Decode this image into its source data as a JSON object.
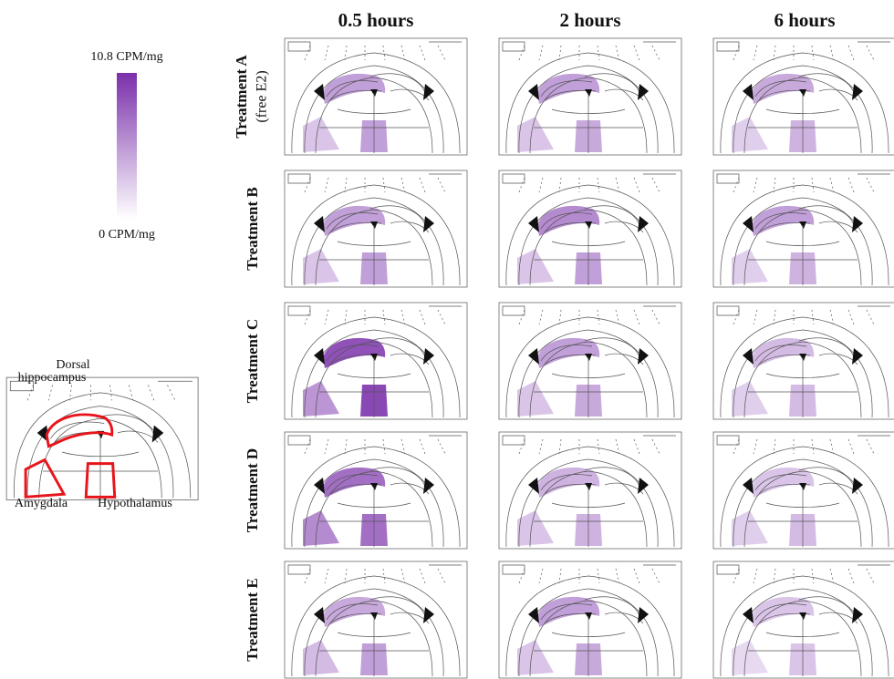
{
  "chart_data": {
    "type": "region-heatmap",
    "color": "#7a2fab",
    "colorbar": {
      "max": 10.8,
      "min": 0,
      "max_label": "10.8 CPM/mg",
      "min_label": "0 CPM/mg"
    },
    "key": {
      "labels": [
        "Dorsal hippocampus",
        "Amygdala",
        "Hypothalamus"
      ],
      "outline_color": "#e8141b"
    },
    "columns": [
      "0.5 hours",
      "2 hours",
      "6 hours"
    ],
    "rows": [
      {
        "label": "Treatment A",
        "sublabel": "(free E2)"
      },
      {
        "label": "Treatment B"
      },
      {
        "label": "Treatment C"
      },
      {
        "label": "Treatment D"
      },
      {
        "label": "Treatment E"
      }
    ],
    "values": [
      [
        [
          5,
          3,
          5
        ],
        [
          5,
          3,
          4.5
        ],
        [
          4.5,
          2.5,
          4
        ]
      ],
      [
        [
          5,
          3,
          5
        ],
        [
          6,
          3,
          5
        ],
        [
          5,
          2.5,
          4
        ]
      ],
      [
        [
          9,
          5.5,
          9.5
        ],
        [
          5,
          3,
          4.5
        ],
        [
          3.5,
          2.5,
          3.5
        ]
      ],
      [
        [
          7.5,
          6,
          7.5
        ],
        [
          4,
          3,
          4
        ],
        [
          3,
          2.5,
          3.5
        ]
      ],
      [
        [
          4.5,
          3.5,
          5
        ],
        [
          5,
          3,
          4.5
        ],
        [
          3,
          2,
          3
        ]
      ]
    ]
  }
}
